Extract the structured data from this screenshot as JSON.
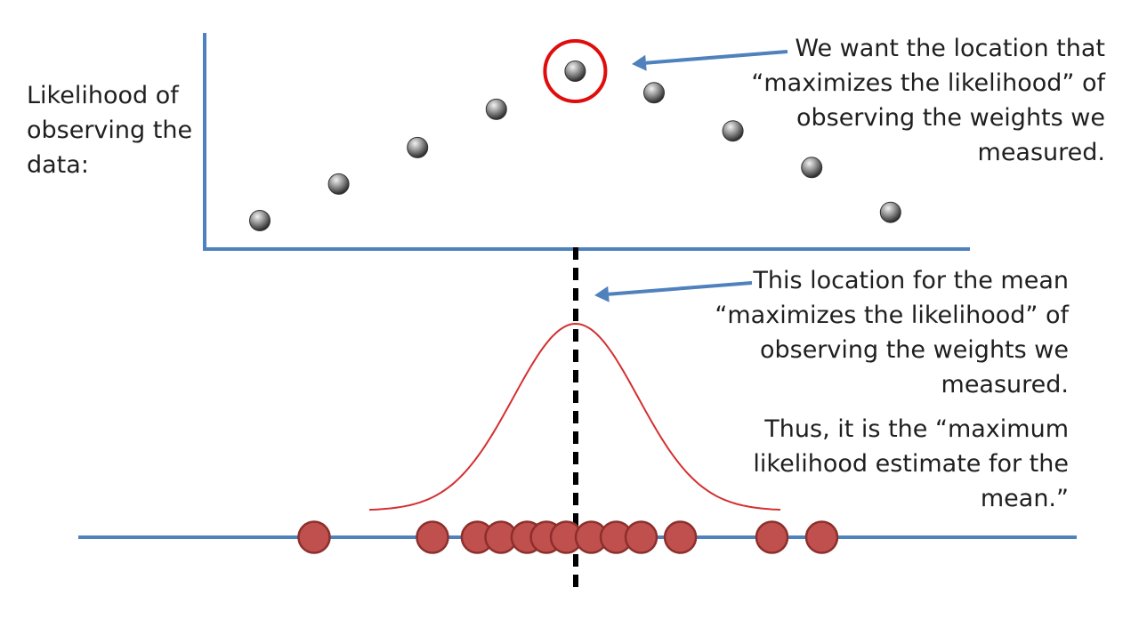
{
  "y_axis_label": {
    "lines": [
      "Likelihood of",
      "observing the",
      "data:"
    ]
  },
  "annotations": {
    "top": {
      "lines": [
        "We want the location that",
        "“maximizes the likelihood” of",
        "observing the weights we",
        "measured."
      ]
    },
    "middle": {
      "lines": [
        "This location for the mean",
        "“maximizes the likelihood” of",
        "observing the weights we",
        "measured."
      ]
    },
    "bottom": {
      "lines": [
        "Thus, it is the “maximum",
        "likelihood estimate for the",
        "mean.”"
      ]
    }
  },
  "colors": {
    "axis": "#4f81bd",
    "curve": "#d43030",
    "highlight": "#e00d0d",
    "data_point": "#c0504d",
    "likelihood_point": "#7f7f7f",
    "mean_line": "#000000",
    "arrow": "#4f81bd"
  },
  "chart_data": {
    "type": "scatter",
    "likelihood_values": [
      0.08,
      0.3,
      0.52,
      0.75,
      0.98,
      0.85,
      0.62,
      0.4,
      0.13
    ],
    "max_index": 4,
    "measured_weights": [
      -4.2,
      -2.3,
      -1.58,
      -1.2,
      -0.78,
      -0.47,
      -0.15,
      0.25,
      0.65,
      1.05,
      1.68,
      3.15,
      3.95
    ],
    "distribution": {
      "mean": 0,
      "sd": 1
    }
  }
}
